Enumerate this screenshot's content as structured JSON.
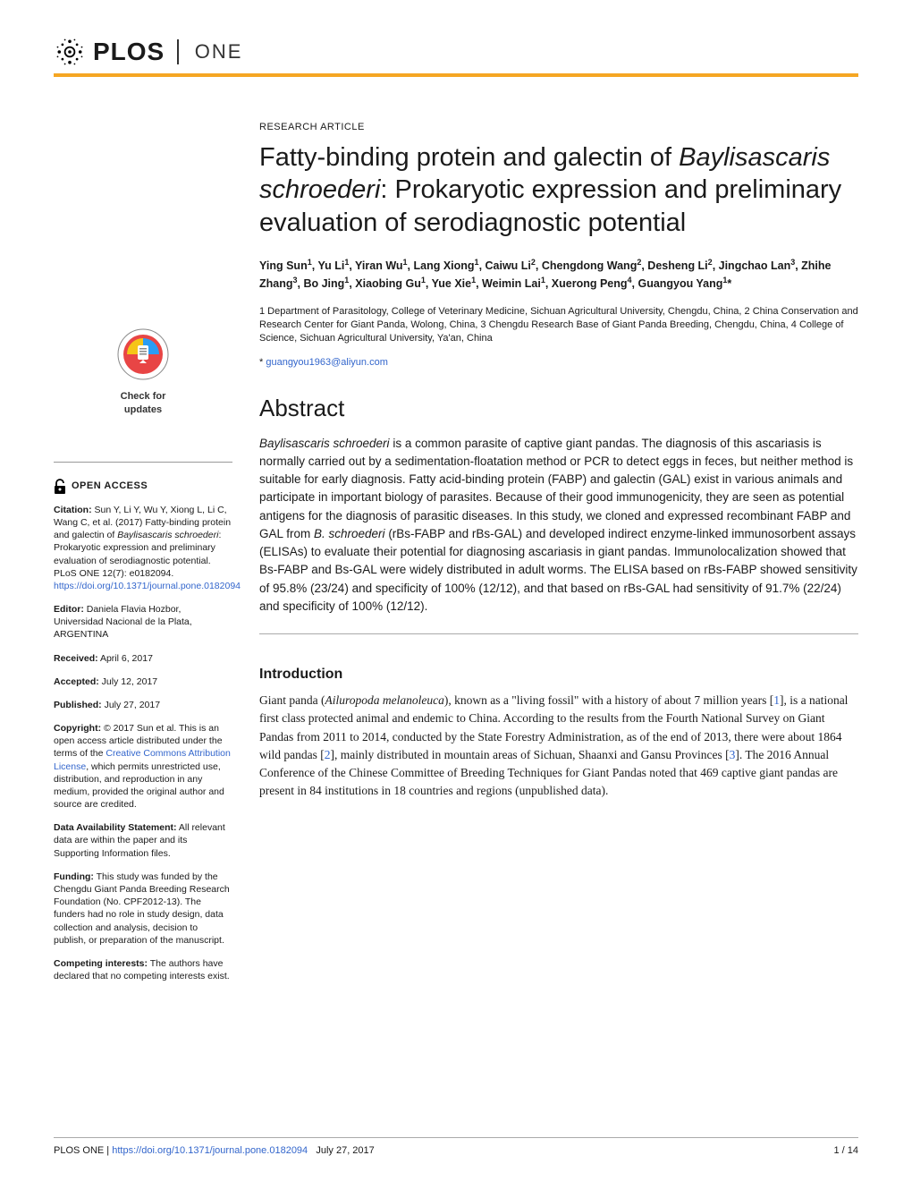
{
  "header": {
    "brand_main": "PLOS",
    "brand_sub": "ONE"
  },
  "sidebar": {
    "check_updates_line1": "Check for",
    "check_updates_line2": "updates",
    "open_access": "OPEN ACCESS",
    "citation_label": "Citation:",
    "citation_text": " Sun Y, Li Y, Wu Y, Xiong L, Li C, Wang C, et al. (2017) Fatty-binding protein and galectin of ",
    "citation_species": "Baylisascaris schroederi",
    "citation_text2": ": Prokaryotic expression and preliminary evaluation of serodiagnostic potential. PLoS ONE 12(7): e0182094. ",
    "citation_doi": "https://doi.org/10.1371/journal.pone.0182094",
    "editor_label": "Editor:",
    "editor_text": " Daniela Flavia Hozbor, Universidad Nacional de la Plata, ARGENTINA",
    "received_label": "Received:",
    "received_text": " April 6, 2017",
    "accepted_label": "Accepted:",
    "accepted_text": " July 12, 2017",
    "published_label": "Published:",
    "published_text": " July 27, 2017",
    "copyright_label": "Copyright:",
    "copyright_text": " © 2017 Sun et al. This is an open access article distributed under the terms of the ",
    "cc_link": "Creative Commons Attribution License",
    "copyright_text2": ", which permits unrestricted use, distribution, and reproduction in any medium, provided the original author and source are credited.",
    "data_label": "Data Availability Statement:",
    "data_text": " All relevant data are within the paper and its Supporting Information files.",
    "funding_label": "Funding:",
    "funding_text": " This study was funded by the Chengdu Giant Panda Breeding Research Foundation (No. CPF2012-13). The funders had no role in study design, data collection and analysis, decision to publish, or preparation of the manuscript.",
    "competing_label": "Competing interests:",
    "competing_text": " The authors have declared that no competing interests exist."
  },
  "article": {
    "type": "RESEARCH ARTICLE",
    "title_part1": "Fatty-binding protein and galectin of ",
    "title_species": "Baylisascaris schroederi",
    "title_part2": ": Prokaryotic expression and preliminary evaluation of serodiagnostic potential",
    "authors_html": "Ying Sun<sup>1</sup>, Yu Li<sup>1</sup>, Yiran Wu<sup>1</sup>, Lang Xiong<sup>1</sup>, Caiwu Li<sup>2</sup>, Chengdong Wang<sup>2</sup>, Desheng Li<sup>2</sup>, Jingchao Lan<sup>3</sup>, Zhihe Zhang<sup>3</sup>, Bo Jing<sup>1</sup>, Xiaobing Gu<sup>1</sup>, Yue Xie<sup>1</sup>, Weimin Lai<sup>1</sup>, Xuerong Peng<sup>4</sup>, Guangyou Yang<sup>1</sup>*",
    "affiliations": "1 Department of Parasitology, College of Veterinary Medicine, Sichuan Agricultural University, Chengdu, China, 2 China Conservation and Research Center for Giant Panda, Wolong, China, 3 Chengdu Research Base of Giant Panda Breeding, Chengdu, China, 4 College of Science, Sichuan Agricultural University, Ya'an, China",
    "corr_star": "* ",
    "corr_email": "guangyou1963@aliyun.com",
    "abstract_heading": "Abstract",
    "abstract_species": "Baylisascaris schroederi",
    "abstract_text": " is a common parasite of captive giant pandas. The diagnosis of this ascariasis is normally carried out by a sedimentation-floatation method or PCR to detect eggs in feces, but neither method is suitable for early diagnosis. Fatty acid-binding protein (FABP) and galectin (GAL) exist in various animals and participate in important biology of parasites. Because of their good immunogenicity, they are seen as potential antigens for the diagnosis of parasitic diseases. In this study, we cloned and expressed recombinant FABP and GAL from ",
    "abstract_species2": "B. schroederi",
    "abstract_text2": " (rBs-FABP and rBs-GAL) and developed indirect enzyme-linked immunosorbent assays (ELISAs) to evaluate their potential for diagnosing ascariasis in giant pandas. Immunolocalization showed that Bs-FABP and Bs-GAL were widely distributed in adult worms. The ELISA based on rBs-FABP showed sensitivity of 95.8% (23/24) and specificity of 100% (12/12), and that based on rBs-GAL had sensitivity of 91.7% (22/24) and specificity of 100% (12/12).",
    "intro_heading": "Introduction",
    "intro_p1_a": "Giant panda (",
    "intro_p1_species": "Ailuropoda melanoleuca",
    "intro_p1_b": "), known as a \"living fossil\" with a history of about 7 million years [",
    "intro_ref1": "1",
    "intro_p1_c": "], is a national first class protected animal and endemic to China. According to the results from the Fourth National Survey on Giant Pandas from 2011 to 2014, conducted by the State Forestry Administration, as of the end of 2013, there were about 1864 wild pandas [",
    "intro_ref2": "2",
    "intro_p1_d": "], mainly distributed in mountain areas of Sichuan, Shaanxi and Gansu Provinces [",
    "intro_ref3": "3",
    "intro_p1_e": "]. The 2016 Annual Conference of the Chinese Committee of Breeding Techniques for Giant Pandas noted that 469 captive giant pandas are present in 84 institutions in 18 countries and regions (unpublished data)."
  },
  "footer": {
    "journal": "PLOS ONE | ",
    "doi": "https://doi.org/10.1371/journal.pone.0182094",
    "date": "July 27, 2017",
    "page": "1 / 14"
  },
  "colors": {
    "accent": "#f5a623",
    "link": "#3366cc",
    "text": "#1a1a1a"
  }
}
